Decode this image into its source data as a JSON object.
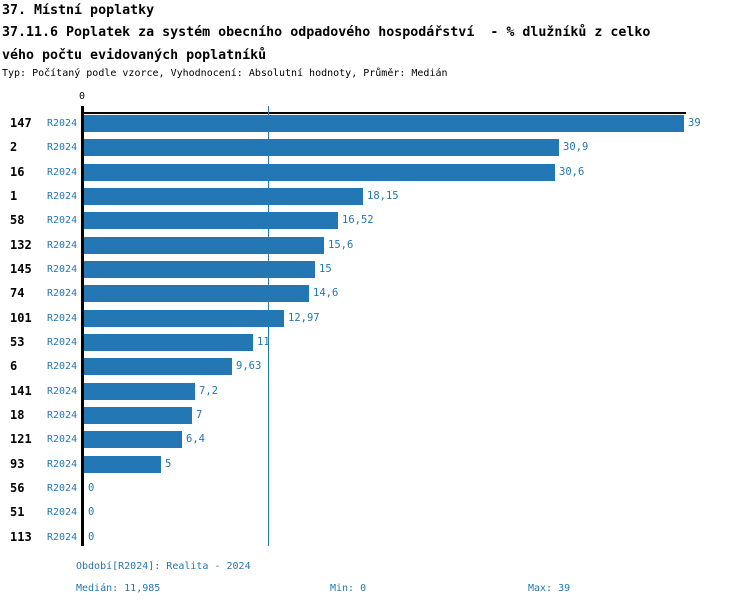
{
  "header": {
    "category": "37. Místní poplatky",
    "title_line1": "37.11.6 Poplatek za systém obecního odpadového hospodářství  - % dlužníků z celko",
    "title_line2": "vého počtu evidovaných poplatníků",
    "meta": "Typ: Počítaný podle vzorce, Vyhodnocení: Absolutní hodnoty, Průměr: Medián"
  },
  "chart_data": {
    "type": "bar",
    "orientation": "horizontal",
    "series_label": "R2024",
    "xlim": [
      0,
      39
    ],
    "axis_origin_label": "0",
    "median_value": 11.985,
    "grid": false,
    "categories": [
      "147",
      "2",
      "16",
      "1",
      "58",
      "132",
      "145",
      "74",
      "101",
      "53",
      "6",
      "141",
      "18",
      "121",
      "93",
      "56",
      "51",
      "113"
    ],
    "values": [
      39,
      30.9,
      30.6,
      18.15,
      16.52,
      15.6,
      15,
      14.6,
      12.97,
      11,
      9.63,
      7.2,
      7,
      6.4,
      5,
      0,
      0,
      0
    ],
    "value_labels": [
      "39",
      "30,9",
      "30,6",
      "18,15",
      "16,52",
      "15,6",
      "15",
      "14,6",
      "12,97",
      "11",
      "9,63",
      "7,2",
      "7",
      "6,4",
      "5",
      "0",
      "0",
      "0"
    ],
    "colors": {
      "bar": "#2277b4",
      "blue_text": "#2277b4",
      "median_line": "#2277b4",
      "axis": "#000000"
    }
  },
  "footer": {
    "period_info": "Období[R2024]: Realita - 2024",
    "median": "Medián: 11,985",
    "min": "Min: 0",
    "max": "Max: 39"
  }
}
